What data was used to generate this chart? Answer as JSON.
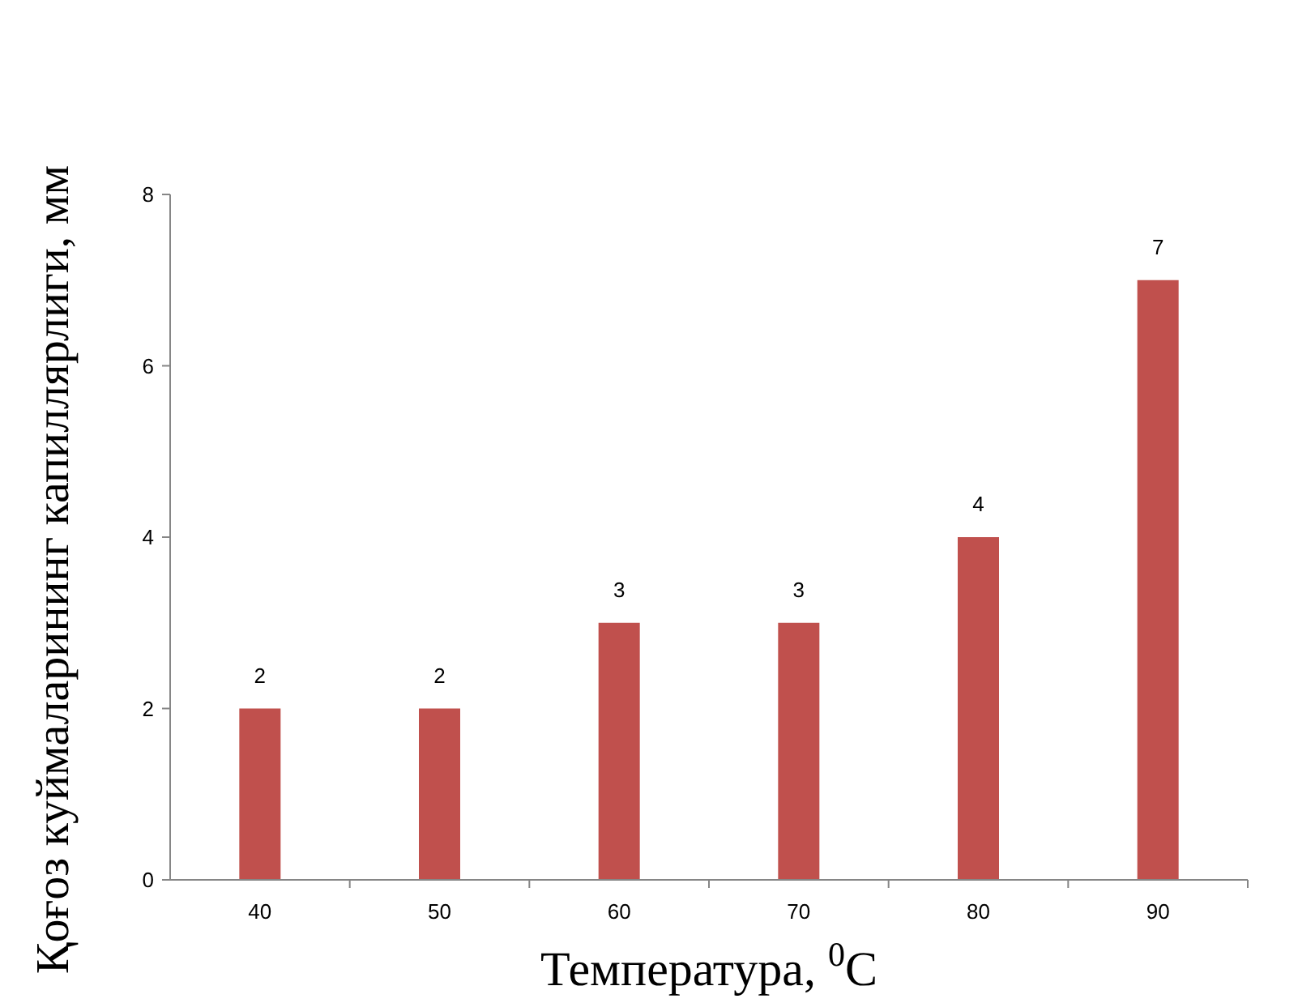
{
  "chart_data": {
    "type": "bar",
    "xlabel": "Температура, $^{0}$C",
    "ylabel": "Қоғоз куймаларининг капиллярлиги, мм",
    "categories": [
      "40",
      "50",
      "60",
      "70",
      "80",
      "90"
    ],
    "values": [
      2,
      2,
      3,
      3,
      4,
      7
    ],
    "color": "#c0504d",
    "ylim": [
      0,
      8
    ],
    "yticks": [
      0,
      2,
      4,
      6,
      8
    ],
    "grid": false,
    "data_labels": true
  }
}
